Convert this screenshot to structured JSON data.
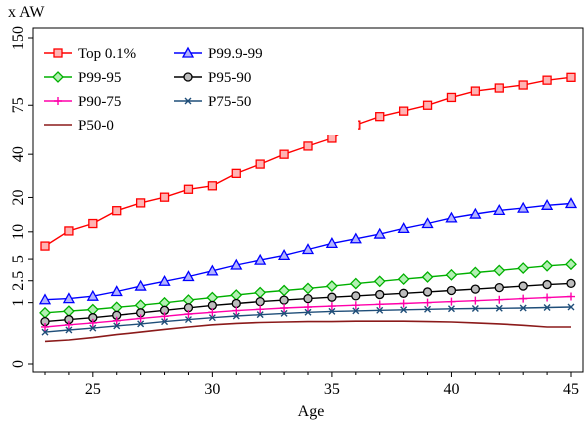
{
  "chart_data": {
    "type": "line",
    "title": "",
    "xlabel": "Age",
    "ylabel": "x AW",
    "x": [
      23,
      24,
      25,
      26,
      27,
      28,
      29,
      30,
      31,
      32,
      33,
      34,
      35,
      36,
      37,
      38,
      39,
      40,
      41,
      42,
      43,
      44,
      45
    ],
    "xticks": [
      25,
      30,
      35,
      40,
      45
    ],
    "xlim": [
      23,
      45
    ],
    "ylim_labels": [
      "0",
      "150"
    ],
    "yticks": [
      "0",
      "1",
      "2.5",
      "5",
      "10",
      "20",
      "40",
      "75",
      "150"
    ],
    "grid": false,
    "legend_placement": "top-left",
    "series": [
      {
        "name": "Top 0.1%",
        "color": "#ff0000",
        "marker": "square",
        "values": [
          7.1,
          10.2,
          12.0,
          15.6,
          18.1,
          20.1,
          23.1,
          24.5,
          30.0,
          34.6,
          40.0,
          44.9,
          50.0,
          59.0,
          65.5,
          70.0,
          75.0,
          82.0,
          88.0,
          91.0,
          94.0,
          99.0,
          102.0
        ]
      },
      {
        "name": "P99.9-99",
        "color": "#0000ff",
        "marker": "triangle",
        "values": [
          1.15,
          1.21,
          1.35,
          1.65,
          2.05,
          2.45,
          2.9,
          3.5,
          4.2,
          4.85,
          5.55,
          6.5,
          7.6,
          8.5,
          9.5,
          10.8,
          12.0,
          13.5,
          14.6,
          15.7,
          16.4,
          17.3,
          17.9
        ]
      },
      {
        "name": "P99-95",
        "color": "#00b000",
        "marker": "diamond",
        "values": [
          0.58,
          0.64,
          0.7,
          0.79,
          0.88,
          0.99,
          1.13,
          1.27,
          1.42,
          1.58,
          1.72,
          1.87,
          2.05,
          2.25,
          2.45,
          2.65,
          2.85,
          3.07,
          3.32,
          3.55,
          3.82,
          4.1,
          4.3
        ]
      },
      {
        "name": "P95-90",
        "color": "#000000",
        "marker": "circle",
        "values": [
          0.33,
          0.38,
          0.43,
          0.5,
          0.58,
          0.67,
          0.77,
          0.87,
          0.96,
          1.05,
          1.13,
          1.21,
          1.29,
          1.37,
          1.45,
          1.53,
          1.62,
          1.72,
          1.82,
          1.93,
          2.05,
          2.17,
          2.27
        ]
      },
      {
        "name": "P90-75",
        "color": "#ff00aa",
        "marker": "plus",
        "values": [
          0.22,
          0.26,
          0.3,
          0.35,
          0.41,
          0.47,
          0.54,
          0.6,
          0.66,
          0.71,
          0.76,
          0.8,
          0.84,
          0.88,
          0.92,
          0.96,
          1.0,
          1.05,
          1.1,
          1.15,
          1.21,
          1.27,
          1.33
        ]
      },
      {
        "name": "P75-50",
        "color": "#1f4e79",
        "marker": "x",
        "values": [
          0.14,
          0.17,
          0.2,
          0.24,
          0.28,
          0.33,
          0.38,
          0.43,
          0.48,
          0.52,
          0.56,
          0.6,
          0.63,
          0.65,
          0.67,
          0.69,
          0.71,
          0.73,
          0.74,
          0.75,
          0.76,
          0.78,
          0.8
        ]
      },
      {
        "name": "P50-0",
        "color": "#8b1a1a",
        "marker": "none",
        "values": [
          0.05,
          0.06,
          0.08,
          0.11,
          0.14,
          0.18,
          0.22,
          0.26,
          0.29,
          0.31,
          0.32,
          0.33,
          0.33,
          0.34,
          0.34,
          0.34,
          0.33,
          0.32,
          0.3,
          0.28,
          0.25,
          0.22,
          0.22
        ]
      }
    ]
  }
}
